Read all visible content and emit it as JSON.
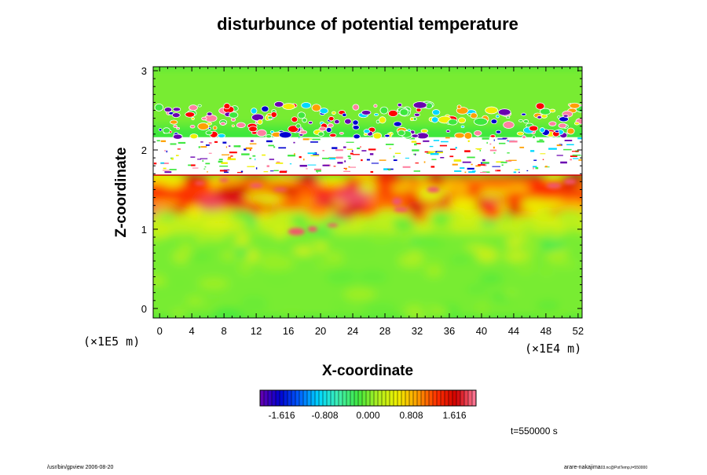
{
  "chart_data": {
    "type": "heatmap",
    "title": "disturbunce of potential temperature",
    "xlabel": "X-coordinate",
    "ylabel": "Z-coordinate",
    "x_unit": "(×1E4 m)",
    "y_unit": "(×1E5 m)",
    "xlim": [
      -0.8,
      52.5
    ],
    "ylim": [
      -0.12,
      3.05
    ],
    "x_ticks": [
      0,
      4,
      8,
      12,
      16,
      20,
      24,
      28,
      32,
      36,
      40,
      44,
      48,
      52
    ],
    "x_tick_labels": [
      "0",
      "4",
      "8",
      "12",
      "16",
      "20",
      "24",
      "28",
      "32",
      "36",
      "40",
      "44",
      "48",
      "52"
    ],
    "y_ticks": [
      0,
      1,
      2,
      3
    ],
    "y_tick_labels": [
      "0",
      "1",
      "2",
      "3"
    ],
    "colorbar": {
      "range": [
        -2.02,
        2.02
      ],
      "ticks": [
        -1.616,
        -0.808,
        0.0,
        0.808,
        1.616
      ],
      "tick_labels": [
        "-1.616",
        "-0.808",
        "0.000",
        "0.808",
        "1.616"
      ],
      "colors": [
        "#6a00b0",
        "#0000d0",
        "#0060ff",
        "#00d8ff",
        "#40f0b0",
        "#40e840",
        "#b0f020",
        "#f0f000",
        "#ffa000",
        "#ff3000",
        "#d00000",
        "#ff80a0"
      ]
    },
    "regions": [
      {
        "z_range": [
          -0.12,
          0.95
        ],
        "value": 0.0
      },
      {
        "z_range": [
          0.95,
          1.25
        ],
        "value": 0.3
      },
      {
        "z_range": [
          1.25,
          1.68
        ],
        "value": 1.3
      },
      {
        "z_range": [
          1.68,
          2.3
        ],
        "value": "out-of-range"
      },
      {
        "z_range": [
          2.3,
          3.05
        ],
        "value": 0.0
      }
    ],
    "time_label": "t=550000 s"
  },
  "footer": {
    "left": "/usr/bin/gpview 2006-08-20",
    "right_main": "arare-nakajima",
    "right_sub": "03.nc@PotTemp,t=550000"
  }
}
